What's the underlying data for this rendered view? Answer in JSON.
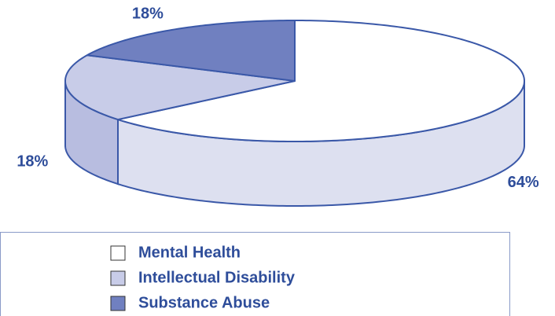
{
  "chart_data": {
    "type": "pie",
    "categories": [
      "Mental Health",
      "Intellectual Disability",
      "Substance Abuse"
    ],
    "values": [
      64,
      18,
      18
    ],
    "value_labels": [
      "64%",
      "18%",
      "18%"
    ],
    "colors": [
      "#ffffff",
      "#c8cce8",
      "#7080c0"
    ],
    "side_colors": [
      "#dde0f0",
      "#b8bde0",
      "#5a6aae"
    ],
    "legend": "bottom"
  }
}
